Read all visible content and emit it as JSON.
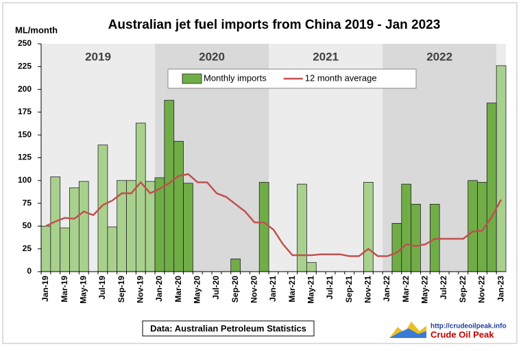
{
  "chart_data": {
    "type": "bar",
    "title": "Australian jet fuel imports from China 2019 - Jan 2023",
    "y_label": "ML/month",
    "source": "Data: Australian Petroleum Statistics",
    "logo_url": "http://crudeoilpeak.info",
    "logo_name": "Crude Oil Peak",
    "year_labels": [
      "2019",
      "2020",
      "2021",
      "2022"
    ],
    "categories": [
      "Jan-19",
      null,
      "Mar-19",
      null,
      "May-19",
      null,
      "Jul-19",
      null,
      "Sep-19",
      null,
      "Nov-19",
      null,
      "Jan-20",
      null,
      "Mar-20",
      null,
      "May-20",
      null,
      "Jul-20",
      null,
      "Sep-20",
      null,
      "Nov-20",
      null,
      "Jan-21",
      null,
      "Mar-21",
      null,
      "May-21",
      null,
      "Jul-21",
      null,
      "Sep-21",
      null,
      "Nov-21",
      null,
      "Jan-22",
      null,
      "Mar-22",
      null,
      "May-22",
      null,
      "Jul-22",
      null,
      "Sep-22",
      null,
      "Nov-22",
      null,
      "Jan-23"
    ],
    "series": [
      {
        "name": "Monthly imports",
        "type": "bar",
        "color": "#70ad47",
        "alt_color": "#a9d18e",
        "values": [
          50,
          104,
          48,
          92,
          99,
          0,
          139,
          49,
          100,
          100,
          163,
          99,
          103,
          188,
          143,
          97,
          0,
          0,
          0,
          0,
          14,
          0,
          0,
          98,
          0,
          0,
          0,
          96,
          10,
          0,
          0,
          0,
          0,
          0,
          98,
          0,
          0,
          53,
          96,
          74,
          0,
          74,
          0,
          0,
          0,
          100,
          98,
          185,
          226
        ]
      },
      {
        "name": "12 month average",
        "type": "line",
        "color": "#c0504d",
        "values": [
          50,
          55,
          59,
          58,
          66,
          62,
          73,
          78,
          86,
          86,
          98,
          86,
          91,
          97,
          105,
          107,
          98,
          98,
          86,
          82,
          74,
          66,
          54,
          54,
          46,
          30,
          18,
          18,
          18,
          19,
          19,
          19,
          17,
          17,
          25,
          17,
          17,
          21,
          30,
          28,
          30,
          36,
          36,
          36,
          36,
          44,
          45,
          60,
          79
        ]
      }
    ],
    "ylim": [
      0,
      250
    ],
    "yticks": [
      0,
      25,
      50,
      75,
      100,
      125,
      150,
      175,
      200,
      225,
      250
    ],
    "grid": false
  }
}
